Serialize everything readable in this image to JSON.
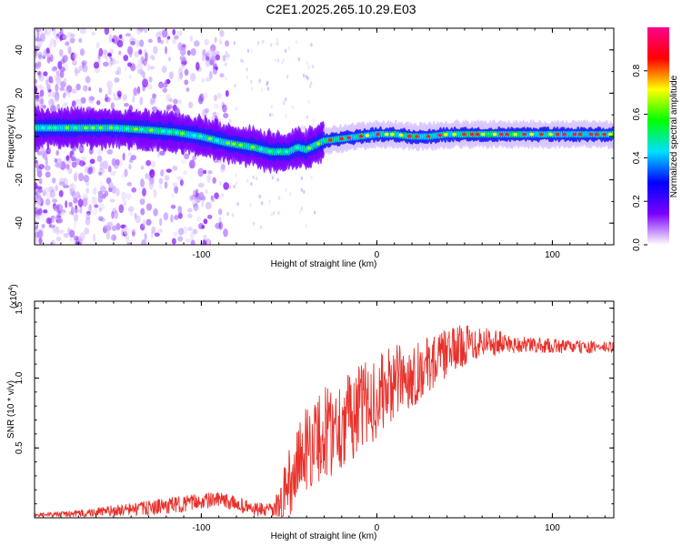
{
  "title": "C2E1.2025.265.10.29.E03",
  "colors": {
    "line": "#e8302a",
    "axis": "#000000",
    "colormap": [
      "#ffffff",
      "#7a00ff",
      "#0000ff",
      "#00e0ff",
      "#00ff00",
      "#ffff00",
      "#ff0000",
      "#ff0090"
    ]
  },
  "chart_data": [
    {
      "type": "heatmap",
      "name": "spectrogram",
      "xlabel": "Height of straight line (km)",
      "ylabel": "Frequency (Hz)",
      "xlim": [
        -195,
        135
      ],
      "ylim": [
        -50,
        50
      ],
      "xticks": [
        -100,
        0,
        100
      ],
      "xtick_labels": [
        "-100",
        "0",
        "100"
      ],
      "yticks": [
        -40,
        -20,
        0,
        20,
        40
      ],
      "ytick_labels": [
        "-40",
        "-20",
        "0",
        "20",
        "40"
      ],
      "ridge": {
        "x": [
          -195,
          -170,
          -150,
          -130,
          -115,
          -100,
          -85,
          -70,
          -60,
          -50,
          -45,
          -40,
          -35,
          -30,
          -20,
          -10,
          0,
          10,
          20,
          30,
          40,
          60,
          80,
          100,
          120,
          135
        ],
        "freq": [
          4,
          4,
          4,
          3,
          2,
          0,
          -3,
          -5,
          -7,
          -7,
          -5,
          -6,
          -4,
          -2,
          -1,
          0,
          1,
          1,
          0,
          0,
          1,
          1,
          1,
          1,
          1,
          1
        ]
      },
      "colorbar": {
        "label": "Normalized spectral amplitude",
        "range": [
          0,
          1
        ],
        "ticks": [
          0.0,
          0.2,
          0.4,
          0.6,
          0.8
        ],
        "tick_labels": [
          "0.0",
          "0.2",
          "0.4",
          "0.6",
          "0.8"
        ]
      }
    },
    {
      "type": "line",
      "name": "snr",
      "xlabel": "Height of straight line (km)",
      "ylabel": "SNR (10 * v/v)",
      "y_multiplier": "(x10",
      "y_multiplier_exp": "4",
      "y_multiplier_close": ")",
      "xlim": [
        -195,
        135
      ],
      "ylim": [
        0,
        1.55
      ],
      "xticks": [
        -100,
        0,
        100
      ],
      "xtick_labels": [
        "-100",
        "0",
        "100"
      ],
      "yticks": [
        0.5,
        1.0,
        1.5
      ],
      "ytick_labels": [
        "0.5",
        "1.0",
        "1.5"
      ],
      "envelope": {
        "x": [
          -195,
          -170,
          -150,
          -130,
          -110,
          -100,
          -90,
          -80,
          -70,
          -60,
          -55,
          -50,
          -45,
          -40,
          -35,
          -30,
          -20,
          -10,
          0,
          10,
          20,
          30,
          40,
          50,
          60,
          70,
          80,
          100,
          120,
          135
        ],
        "y": [
          0.02,
          0.03,
          0.05,
          0.07,
          0.1,
          0.12,
          0.13,
          0.1,
          0.06,
          0.05,
          0.1,
          0.25,
          0.4,
          0.5,
          0.55,
          0.6,
          0.68,
          0.78,
          0.86,
          0.97,
          1.02,
          1.1,
          1.18,
          1.24,
          1.27,
          1.25,
          1.24,
          1.23,
          1.22,
          1.22
        ]
      },
      "noise": {
        "x": [
          -195,
          -120,
          -60,
          -50,
          -30,
          0,
          30,
          60,
          80,
          135
        ],
        "amp": [
          0.01,
          0.06,
          0.05,
          0.25,
          0.35,
          0.3,
          0.2,
          0.12,
          0.06,
          0.04
        ]
      }
    }
  ]
}
